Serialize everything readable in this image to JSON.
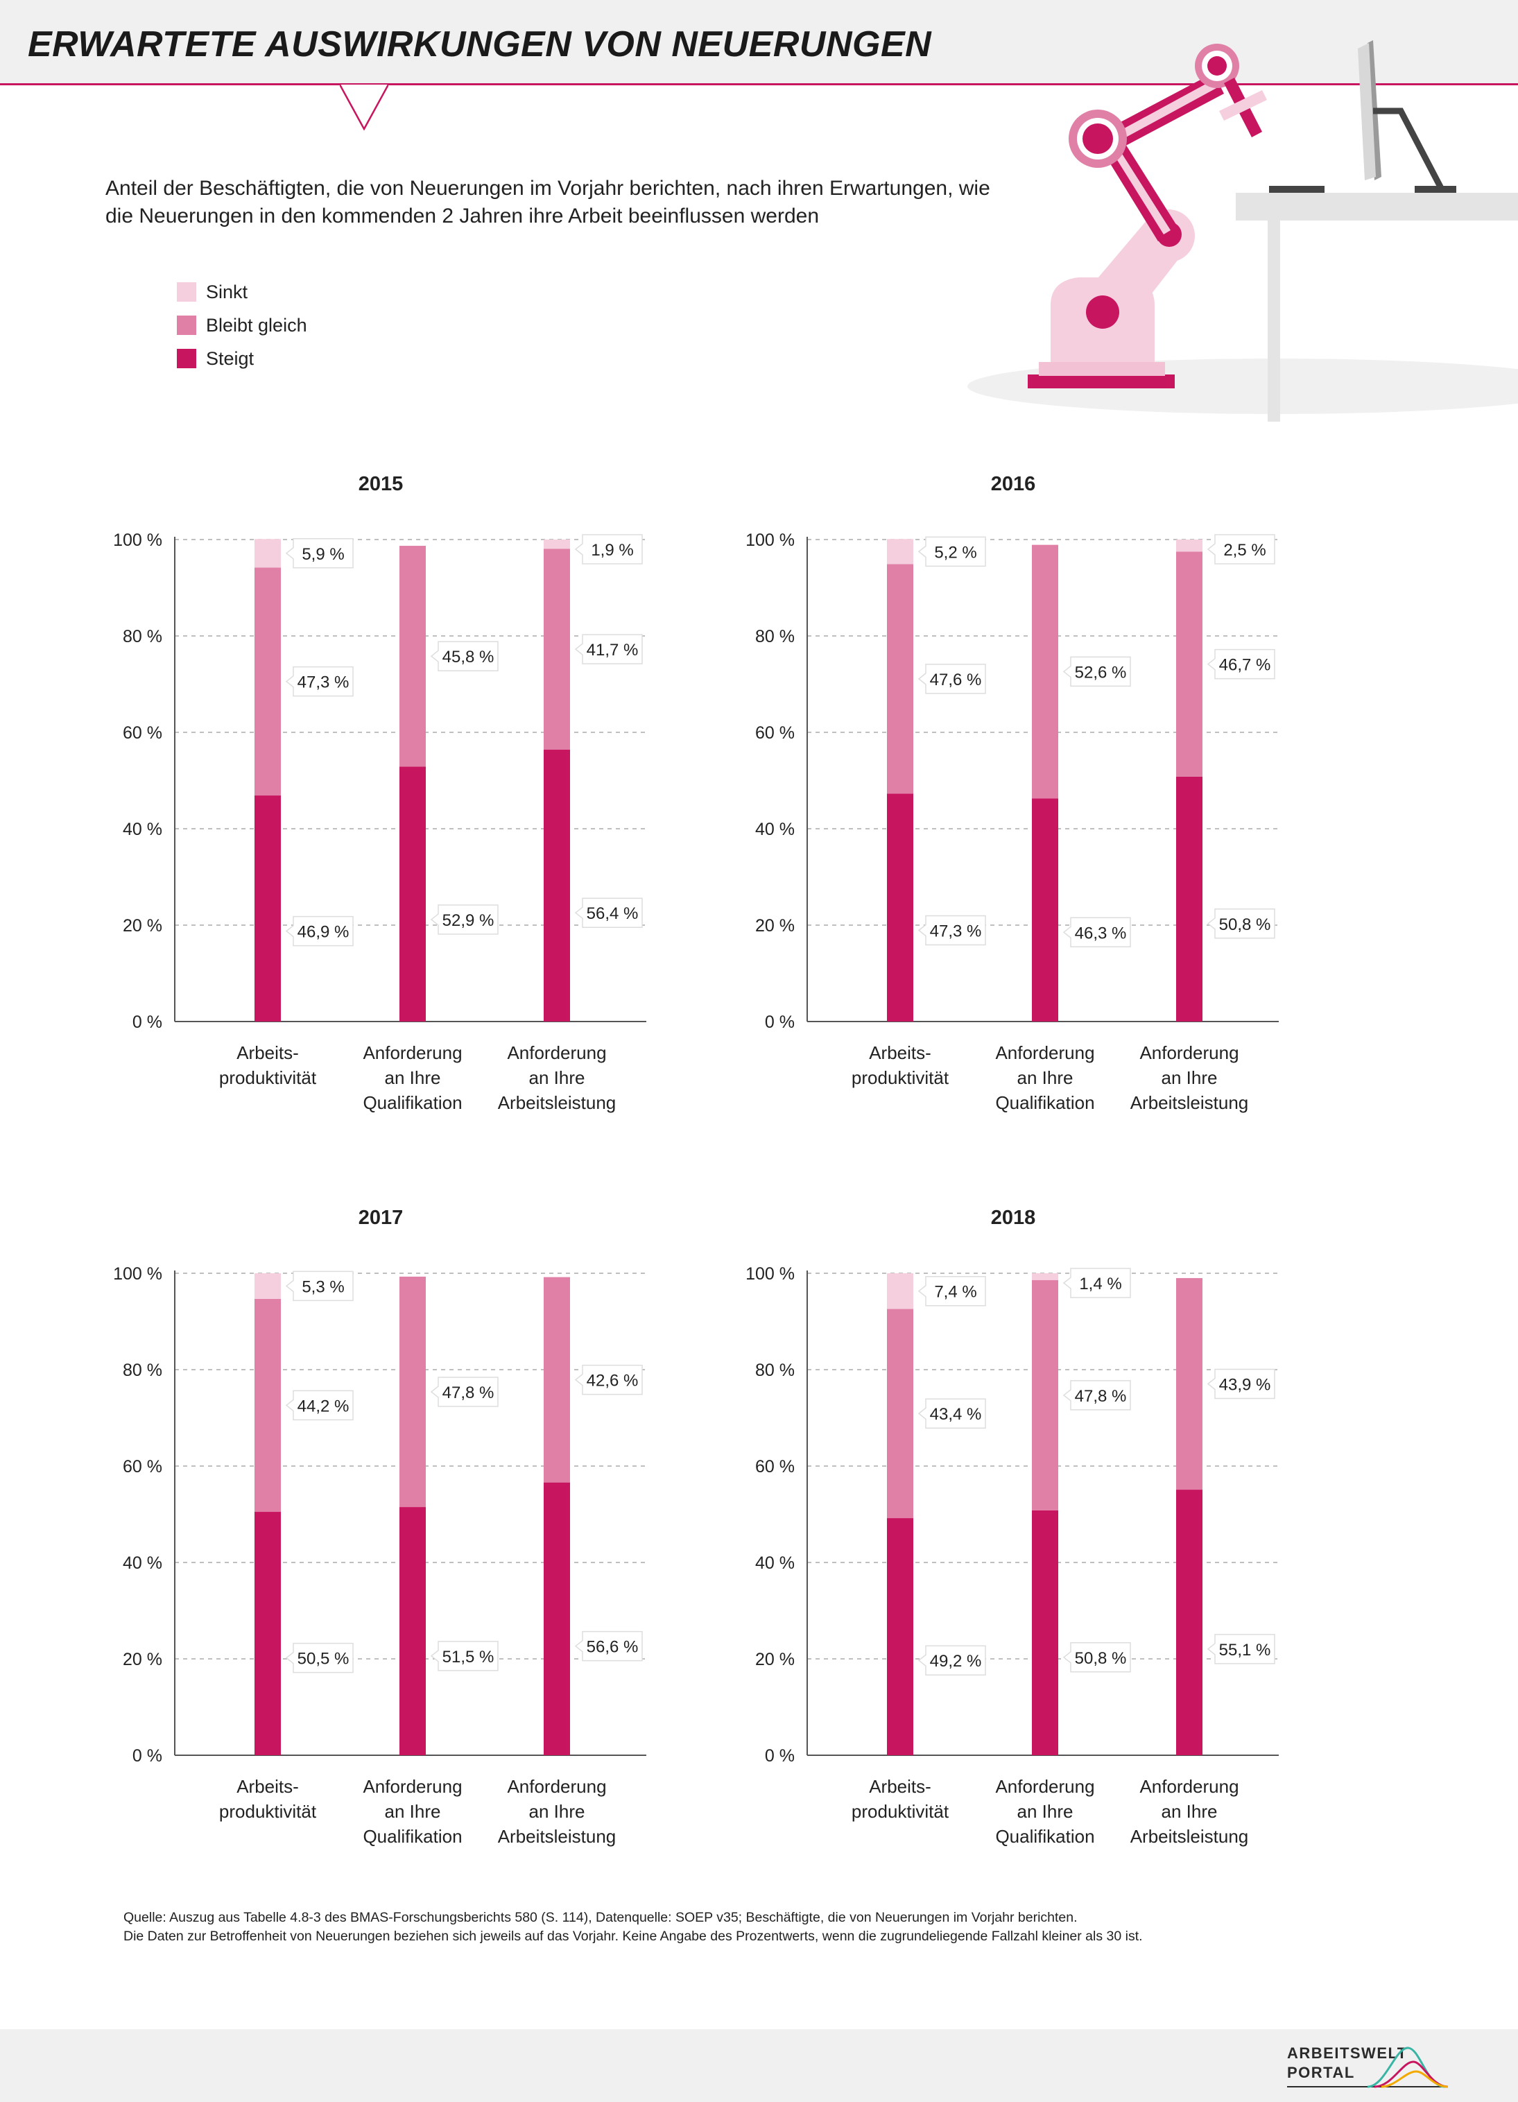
{
  "header": {
    "title": "ERWARTETE AUSWIRKUNGEN VON NEUERUNGEN"
  },
  "subtitle": "Anteil der Beschäftigten, die von Neuerungen im Vorjahr berichten, nach ihren Erwartungen, wie die Neuerungen in den kommenden 2 Jahren ihre Arbeit beeinflussen werden",
  "legend": [
    {
      "label": "Sinkt",
      "color": "#f6cfdf"
    },
    {
      "label": "Bleibt gleich",
      "color": "#e080a6"
    },
    {
      "label": "Steigt",
      "color": "#c8155f"
    }
  ],
  "colors": {
    "steigt": "#c8155f",
    "bleibt": "#e080a6",
    "sinkt": "#f6cfdf",
    "accent": "#c8155f"
  },
  "chart_data": [
    {
      "type": "bar",
      "stacked": true,
      "title": "2015",
      "categories": [
        "Arbeits-\nproduktivität",
        "Anforderung\nan Ihre\nQualifikation",
        "Anforderung\nan Ihre\nArbeitsleistung"
      ],
      "series": [
        {
          "name": "Steigt",
          "values": [
            46.9,
            52.9,
            56.4
          ],
          "labels": [
            "46,9 %",
            "52,9 %",
            "56,4 %"
          ]
        },
        {
          "name": "Bleibt gleich",
          "values": [
            47.3,
            45.8,
            41.7
          ],
          "labels": [
            "47,3 %",
            "45,8 %",
            "41,7 %"
          ]
        },
        {
          "name": "Sinkt",
          "values": [
            5.9,
            null,
            1.9
          ],
          "labels": [
            "5,9 %",
            "",
            "1,9 %"
          ]
        }
      ],
      "ylim": [
        0,
        100
      ],
      "yticks": [
        "0 %",
        "20 %",
        "40 %",
        "60 %",
        "80 %",
        "100 %"
      ]
    },
    {
      "type": "bar",
      "stacked": true,
      "title": "2016",
      "categories": [
        "Arbeits-\nproduktivität",
        "Anforderung\nan Ihre\nQualifikation",
        "Anforderung\nan Ihre\nArbeitsleistung"
      ],
      "series": [
        {
          "name": "Steigt",
          "values": [
            47.3,
            46.3,
            50.8
          ],
          "labels": [
            "47,3 %",
            "46,3 %",
            "50,8 %"
          ]
        },
        {
          "name": "Bleibt gleich",
          "values": [
            47.6,
            52.6,
            46.7
          ],
          "labels": [
            "47,6 %",
            "52,6 %",
            "46,7 %"
          ]
        },
        {
          "name": "Sinkt",
          "values": [
            5.2,
            null,
            2.5
          ],
          "labels": [
            "5,2 %",
            "",
            "2,5 %"
          ]
        }
      ],
      "ylim": [
        0,
        100
      ],
      "yticks": [
        "0 %",
        "20 %",
        "40 %",
        "60 %",
        "80 %",
        "100 %"
      ]
    },
    {
      "type": "bar",
      "stacked": true,
      "title": "2017",
      "categories": [
        "Arbeits-\nproduktivität",
        "Anforderung\nan Ihre\nQualifikation",
        "Anforderung\nan Ihre\nArbeitsleistung"
      ],
      "series": [
        {
          "name": "Steigt",
          "values": [
            50.5,
            51.5,
            56.6
          ],
          "labels": [
            "50,5 %",
            "51,5 %",
            "56,6 %"
          ]
        },
        {
          "name": "Bleibt gleich",
          "values": [
            44.2,
            47.8,
            42.6
          ],
          "labels": [
            "44,2 %",
            "47,8 %",
            "42,6 %"
          ]
        },
        {
          "name": "Sinkt",
          "values": [
            5.3,
            null,
            null
          ],
          "labels": [
            "5,3 %",
            "",
            ""
          ]
        }
      ],
      "ylim": [
        0,
        100
      ],
      "yticks": [
        "0 %",
        "20 %",
        "40 %",
        "60 %",
        "80 %",
        "100 %"
      ]
    },
    {
      "type": "bar",
      "stacked": true,
      "title": "2018",
      "categories": [
        "Arbeits-\nproduktivität",
        "Anforderung\nan Ihre\nQualifikation",
        "Anforderung\nan Ihre\nArbeitsleistung"
      ],
      "series": [
        {
          "name": "Steigt",
          "values": [
            49.2,
            50.8,
            55.1
          ],
          "labels": [
            "49,2 %",
            "50,8 %",
            "55,1 %"
          ]
        },
        {
          "name": "Bleibt gleich",
          "values": [
            43.4,
            47.8,
            43.9
          ],
          "labels": [
            "43,4 %",
            "47,8 %",
            "43,9 %"
          ]
        },
        {
          "name": "Sinkt",
          "values": [
            7.4,
            1.4,
            null
          ],
          "labels": [
            "7,4 %",
            "1,4 %",
            ""
          ]
        }
      ],
      "ylim": [
        0,
        100
      ],
      "yticks": [
        "0 %",
        "20 %",
        "40 %",
        "60 %",
        "80 %",
        "100 %"
      ]
    }
  ],
  "source": {
    "line1": "Quelle: Auszug aus Tabelle 4.8-3 des BMAS-Forschungsberichts 580 (S. 114), Datenquelle: SOEP v35; Beschäftigte, die von Neuerungen im Vorjahr berichten.",
    "line2": "Die Daten zur Betroffenheit von Neuerungen beziehen sich jeweils auf das Vorjahr. Keine Angabe des Prozentwerts, wenn die zugrundeliegende Fallzahl kleiner als 30 ist."
  },
  "logo": {
    "line1": "ARBEITSWELT",
    "line2": "PORTAL"
  }
}
